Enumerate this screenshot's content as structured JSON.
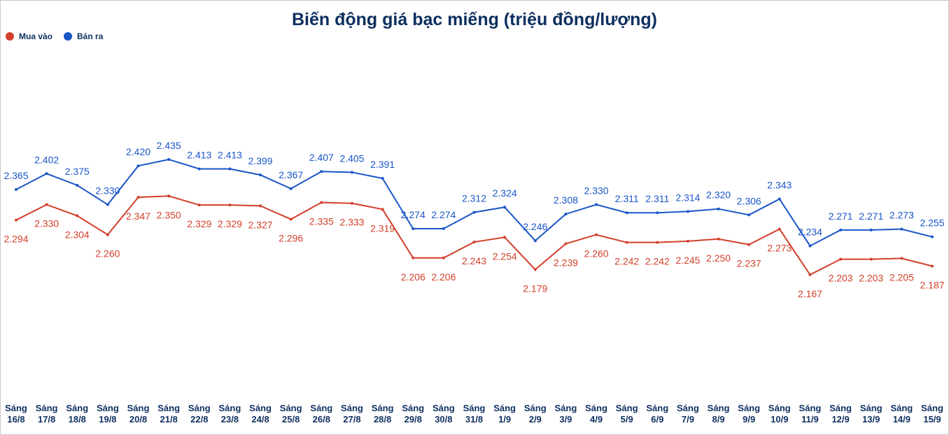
{
  "chart_data": {
    "type": "line",
    "title": "Biến động giá bạc miếng (triệu đồng/lượng)",
    "categories": [
      "Sáng 16/8",
      "Sáng 17/8",
      "Sáng 18/8",
      "Sáng 19/8",
      "Sáng 20/8",
      "Sáng 21/8",
      "Sáng 22/8",
      "Sáng 23/8",
      "Sáng 24/8",
      "Sáng 25/8",
      "Sáng 26/8",
      "Sáng 27/8",
      "Sáng 28/8",
      "Sáng 29/8",
      "Sáng 30/8",
      "Sáng 31/8",
      "Sáng 1/9",
      "Sáng 2/9",
      "Sáng 3/9",
      "Sáng 4/9",
      "Sáng 5/9",
      "Sáng 6/9",
      "Sáng 7/9",
      "Sáng 8/9",
      "Sáng 9/9",
      "Sáng 10/9",
      "Sáng 11/9",
      "Sáng 12/9",
      "Sáng 13/9",
      "Sáng 14/9",
      "Sáng 15/9"
    ],
    "series": [
      {
        "name": "Mua vào",
        "color": "#d23f2a",
        "values": [
          2.294,
          2.33,
          2.304,
          2.26,
          2.347,
          2.35,
          2.329,
          2.329,
          2.327,
          2.296,
          2.335,
          2.333,
          2.319,
          2.206,
          2.206,
          2.243,
          2.254,
          2.179,
          2.239,
          2.26,
          2.242,
          2.242,
          2.245,
          2.25,
          2.237,
          2.273,
          2.167,
          2.203,
          2.203,
          2.205,
          2.187
        ],
        "value_labels": [
          "2.294",
          "2.330",
          "2.304",
          "2.260",
          "2.347",
          "2.350",
          "2.329",
          "2.329",
          "2.327",
          "2.296",
          "2.335",
          "2.333",
          "2.319",
          "2.206",
          "2.206",
          "2.243",
          "2.254",
          "2.179",
          "2.239",
          "2.260",
          "2.242",
          "2.242",
          "2.245",
          "2.250",
          "2.237",
          "2.273",
          "2.167",
          "2.203",
          "2.203",
          "2.205",
          "2.187"
        ]
      },
      {
        "name": "Bán ra",
        "color": "#1a56c8",
        "values": [
          2.365,
          2.402,
          2.375,
          2.33,
          2.42,
          2.435,
          2.413,
          2.413,
          2.399,
          2.367,
          2.407,
          2.405,
          2.391,
          2.274,
          2.274,
          2.312,
          2.324,
          2.246,
          2.308,
          2.33,
          2.311,
          2.311,
          2.314,
          2.32,
          2.306,
          2.343,
          2.234,
          2.271,
          2.271,
          2.273,
          2.255
        ],
        "value_labels": [
          "2.365",
          "2.402",
          "2.375",
          "2.330",
          "2.420",
          "2.435",
          "2.413",
          "2.413",
          "2.399",
          "2.367",
          "2.407",
          "2.405",
          "2.391",
          "2.274",
          "2.274",
          "2.312",
          "2.324",
          "2.246",
          "2.308",
          "2.330",
          "2.311",
          "2.311",
          "2.314",
          "2.320",
          "2.306",
          "2.343",
          "2.234",
          "2.271",
          "2.271",
          "2.273",
          "2.255"
        ]
      }
    ],
    "ylim": [
      1.9,
      2.7
    ],
    "legend": "top-left"
  }
}
